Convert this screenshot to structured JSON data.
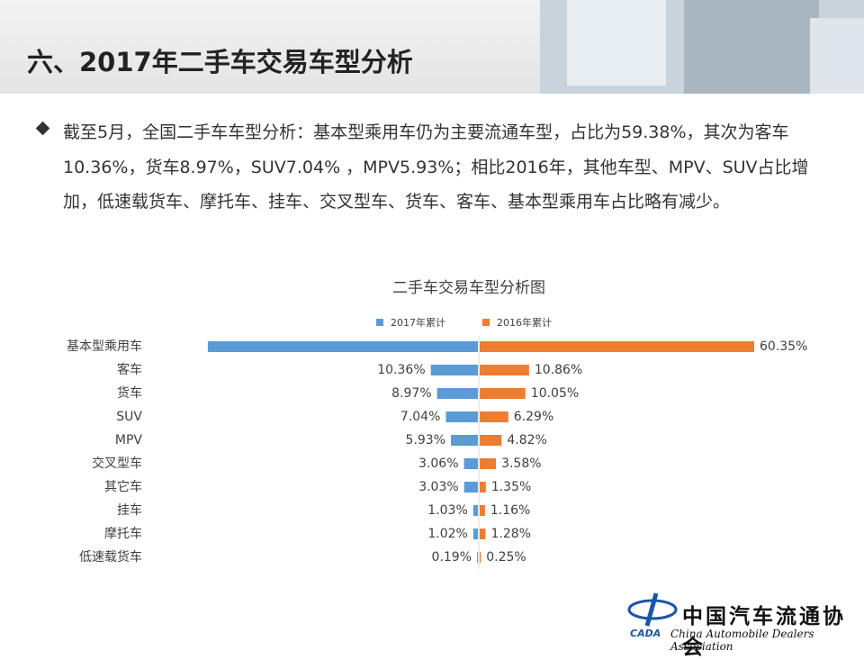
{
  "header": {
    "title": "六、2017年二手车交易车型分析"
  },
  "body": {
    "paragraph": "截至5月，全国二手车车型分析：基本型乘用车仍为主要流通车型，占比为59.38%，其次为客车10.36%，货车8.97%，SUV7.04% ，MPV5.93%；相比2016年，其他车型、MPV、SUV占比增加，低速载货车、摩托车、挂车、交叉型车、货车、客车、基本型乘用车占比略有减少。"
  },
  "footer": {
    "org_cn": "中国汽车流通协会",
    "org_en": "China Automobile Dealers Association",
    "logo": "CADA"
  },
  "chart_data": {
    "type": "butterfly",
    "title": "二手车交易车型分析图",
    "categories": [
      "基本型乘用车",
      "客车",
      "货车",
      "SUV",
      "MPV",
      "交叉型车",
      "其它车",
      "挂车",
      "摩托车",
      "低速载货车"
    ],
    "series": [
      {
        "name": "2017年累计",
        "color": "#5b9bd5",
        "values": [
          59.38,
          10.36,
          8.97,
          7.04,
          5.93,
          3.06,
          3.03,
          1.03,
          1.02,
          0.19
        ],
        "value_labels": [
          null,
          "10.36%",
          "8.97%",
          "7.04%",
          "5.93%",
          "3.06%",
          "3.03%",
          "1.03%",
          "1.02%",
          "0.19%"
        ]
      },
      {
        "name": "2016年累计",
        "color": "#ed7d31",
        "values": [
          60.35,
          10.86,
          10.05,
          6.29,
          4.82,
          3.58,
          1.35,
          1.16,
          1.28,
          0.25
        ],
        "value_labels": [
          "60.35%",
          "10.86%",
          "10.05%",
          "6.29%",
          "4.82%",
          "3.58%",
          "1.35%",
          "1.16%",
          "1.28%",
          "0.25%"
        ]
      }
    ]
  }
}
